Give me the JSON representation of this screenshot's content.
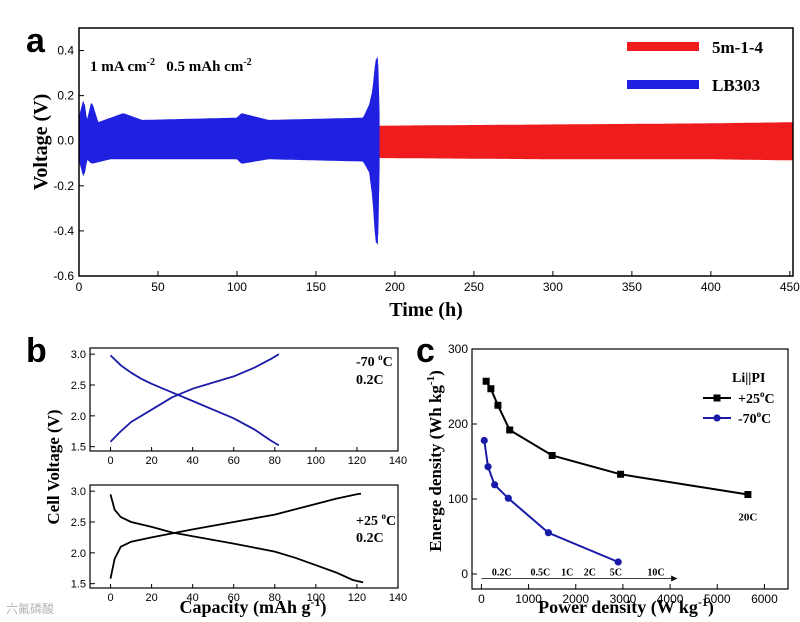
{
  "colors": {
    "red": "#ee1c1c",
    "blue": "#2020e0",
    "navy": "#1a1aa8",
    "black": "#000000"
  },
  "watermark": "六氟磷酸",
  "chart_data": [
    {
      "id": "a",
      "panel_label": "a",
      "type": "line",
      "title": "",
      "xlabel": "Time (h)",
      "ylabel": "Voltage (V)",
      "xlim": [
        0,
        452
      ],
      "ylim": [
        -0.6,
        0.5
      ],
      "xticks": [
        0,
        50,
        100,
        150,
        200,
        250,
        300,
        350,
        400,
        450
      ],
      "yticks": [
        -0.6,
        -0.4,
        -0.2,
        0.0,
        0.2,
        0.4
      ],
      "ytick_labels": [
        "-0.6",
        "-0.4",
        "-0.2",
        "0.0",
        "0.2",
        "0.4"
      ],
      "annotation": {
        "part1": "1 mA cm",
        "sup1": "-2",
        "part2": "   0.5 mAh cm",
        "sup2": "-2"
      },
      "legend": {
        "position": "top-right"
      },
      "series": [
        {
          "name": "5m-1-4",
          "color": "#ee1c1c",
          "range_h": [
            0,
            452
          ],
          "envelope_upper": [
            [
              0,
              0.06
            ],
            [
              100,
              0.06
            ],
            [
              200,
              0.065
            ],
            [
              300,
              0.07
            ],
            [
              400,
              0.075
            ],
            [
              452,
              0.08
            ]
          ],
          "envelope_lower": [
            [
              0,
              -0.06
            ],
            [
              100,
              -0.07
            ],
            [
              200,
              -0.075
            ],
            [
              300,
              -0.08
            ],
            [
              400,
              -0.08
            ],
            [
              452,
              -0.085
            ]
          ]
        },
        {
          "name": "LB303",
          "color": "#2020e0",
          "range_h": [
            0,
            190
          ],
          "envelope_upper": [
            [
              0,
              0.1
            ],
            [
              3,
              0.18
            ],
            [
              5,
              0.08
            ],
            [
              8,
              0.17
            ],
            [
              12,
              0.08
            ],
            [
              28,
              0.12
            ],
            [
              40,
              0.09
            ],
            [
              100,
              0.1
            ],
            [
              103,
              0.12
            ],
            [
              120,
              0.09
            ],
            [
              180,
              0.1
            ],
            [
              184,
              0.16
            ],
            [
              186,
              0.22
            ],
            [
              188,
              0.36
            ],
            [
              189,
              0.37
            ],
            [
              190,
              0.12
            ]
          ],
          "envelope_lower": [
            [
              0,
              -0.08
            ],
            [
              3,
              -0.16
            ],
            [
              5,
              -0.08
            ],
            [
              8,
              -0.1
            ],
            [
              20,
              -0.08
            ],
            [
              100,
              -0.08
            ],
            [
              103,
              -0.1
            ],
            [
              120,
              -0.08
            ],
            [
              180,
              -0.09
            ],
            [
              184,
              -0.14
            ],
            [
              186,
              -0.25
            ],
            [
              188,
              -0.45
            ],
            [
              189,
              -0.46
            ],
            [
              190,
              -0.12
            ]
          ]
        }
      ]
    },
    {
      "id": "b",
      "panel_label": "b",
      "type": "line",
      "xlabel": "Capacity (mAh g",
      "xlabel_sup": "-1",
      "xlabel_tail": ")",
      "ylabel": "Cell Voltage (V)",
      "subplots": [
        {
          "xlim": [
            -10,
            140
          ],
          "ylim": [
            1.43,
            3.1
          ],
          "xticks": [
            0,
            20,
            40,
            60,
            80,
            100,
            120,
            140
          ],
          "yticks": [
            1.5,
            2.0,
            2.5,
            3.0
          ],
          "ytick_labels": [
            "1.5",
            "2.0",
            "2.5",
            "3.0"
          ],
          "label_line1": "-70 ",
          "label_sup": "o",
          "label_tail": "C",
          "label_line2": "0.2C",
          "series": [
            {
              "name": "discharge -70C",
              "color": "#1a1aa8",
              "points": [
                [
                  0,
                  2.98
                ],
                [
                  5,
                  2.82
                ],
                [
                  10,
                  2.7
                ],
                [
                  15,
                  2.6
                ],
                [
                  20,
                  2.52
                ],
                [
                  30,
                  2.38
                ],
                [
                  40,
                  2.24
                ],
                [
                  50,
                  2.1
                ],
                [
                  60,
                  1.96
                ],
                [
                  70,
                  1.78
                ],
                [
                  78,
                  1.6
                ],
                [
                  82,
                  1.52
                ]
              ]
            },
            {
              "name": "charge -70C",
              "color": "#1a1aa8",
              "points": [
                [
                  0,
                  1.58
                ],
                [
                  5,
                  1.75
                ],
                [
                  10,
                  1.9
                ],
                [
                  20,
                  2.1
                ],
                [
                  30,
                  2.3
                ],
                [
                  40,
                  2.44
                ],
                [
                  50,
                  2.54
                ],
                [
                  60,
                  2.64
                ],
                [
                  70,
                  2.78
                ],
                [
                  78,
                  2.92
                ],
                [
                  82,
                  3.0
                ]
              ]
            }
          ]
        },
        {
          "xlim": [
            -10,
            140
          ],
          "ylim": [
            1.43,
            3.1
          ],
          "xticks": [
            0,
            20,
            40,
            60,
            80,
            100,
            120,
            140
          ],
          "yticks": [
            1.5,
            2.0,
            2.5,
            3.0
          ],
          "ytick_labels": [
            "1.5",
            "2.0",
            "2.5",
            "3.0"
          ],
          "label_line1": "+25 ",
          "label_sup": "o",
          "label_tail": "C",
          "label_line2": "0.2C",
          "series": [
            {
              "name": "discharge +25C",
              "color": "#000000",
              "points": [
                [
                  0,
                  2.95
                ],
                [
                  2,
                  2.7
                ],
                [
                  5,
                  2.58
                ],
                [
                  10,
                  2.5
                ],
                [
                  20,
                  2.42
                ],
                [
                  30,
                  2.33
                ],
                [
                  40,
                  2.27
                ],
                [
                  60,
                  2.15
                ],
                [
                  80,
                  2.02
                ],
                [
                  90,
                  1.92
                ],
                [
                  100,
                  1.8
                ],
                [
                  110,
                  1.68
                ],
                [
                  118,
                  1.56
                ],
                [
                  123,
                  1.52
                ]
              ]
            },
            {
              "name": "charge +25C",
              "color": "#000000",
              "points": [
                [
                  0,
                  1.58
                ],
                [
                  2,
                  1.9
                ],
                [
                  5,
                  2.1
                ],
                [
                  10,
                  2.18
                ],
                [
                  20,
                  2.25
                ],
                [
                  40,
                  2.38
                ],
                [
                  60,
                  2.5
                ],
                [
                  80,
                  2.62
                ],
                [
                  95,
                  2.75
                ],
                [
                  110,
                  2.88
                ],
                [
                  120,
                  2.95
                ],
                [
                  122,
                  2.96
                ]
              ]
            }
          ]
        }
      ]
    },
    {
      "id": "c",
      "panel_label": "c",
      "type": "line",
      "xlabel": "Power density (W kg",
      "xlabel_sup": "-1",
      "xlabel_tail": ")",
      "ylabel": "Energe density (Wh kg",
      "ylabel_sup": "-1",
      "ylabel_tail": ")",
      "xlim": [
        -200,
        6500
      ],
      "ylim": [
        -20,
        300
      ],
      "xticks": [
        0,
        1000,
        2000,
        3000,
        4000,
        5000,
        6000
      ],
      "yticks": [
        0,
        100,
        200,
        300
      ],
      "legend": {
        "title": "Li||PI",
        "position": "top-right"
      },
      "series": [
        {
          "name": "+25",
          "legend_sup": "o",
          "legend_tail": "C",
          "color": "#000000",
          "marker": "square",
          "x": [
            100,
            200,
            350,
            600,
            1500,
            2950,
            5650
          ],
          "y": [
            257,
            247,
            225,
            192,
            158,
            133,
            106
          ]
        },
        {
          "name": "-70",
          "legend_sup": "o",
          "legend_tail": "C",
          "color": "#1a1aa8",
          "marker": "circle",
          "x": [
            60,
            140,
            280,
            570,
            1420,
            2900
          ],
          "y": [
            178,
            143,
            119,
            101,
            55,
            16
          ]
        }
      ],
      "rate_labels": [
        "0.2C",
        "0.5C",
        "1C",
        "2C",
        "5C",
        "10C"
      ],
      "rate_label_x": [
        430,
        1250,
        1820,
        2300,
        2850,
        3700
      ],
      "end_label": "20C"
    }
  ]
}
